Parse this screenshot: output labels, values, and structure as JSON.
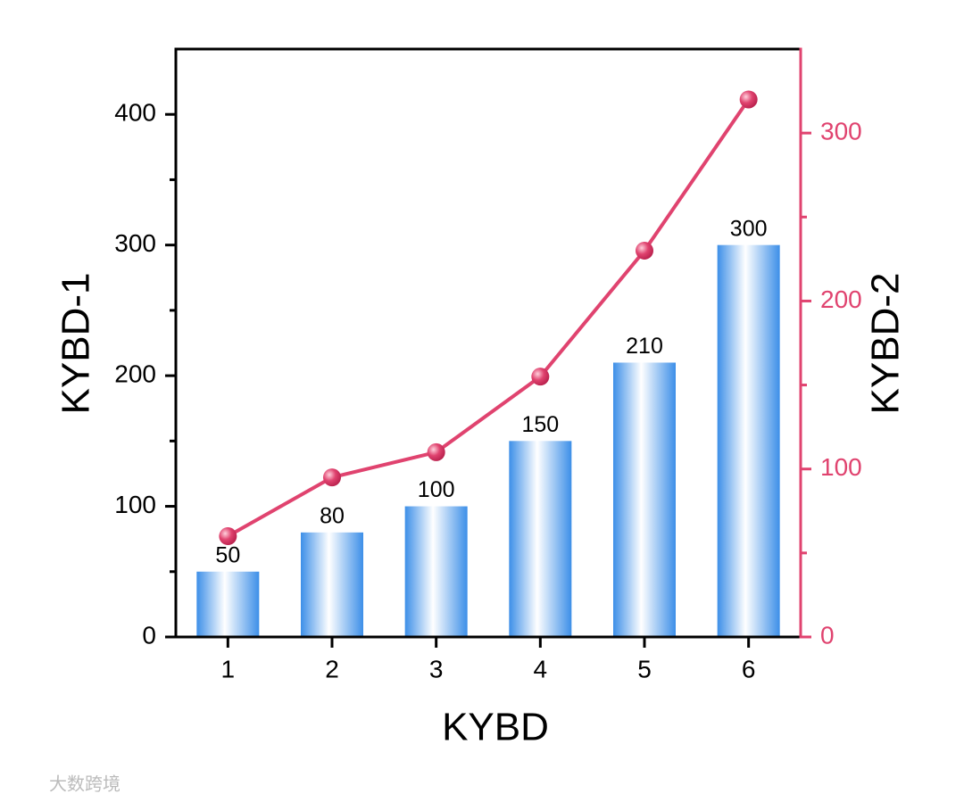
{
  "chart_data": {
    "type": "bar_line",
    "x_label": "KYBD",
    "y_label": "KYBD-1",
    "y2_label": "KYBD-2",
    "categories": [
      "1",
      "2",
      "3",
      "4",
      "5",
      "6"
    ],
    "series": [
      {
        "type": "bar",
        "color": "#3d8fe8",
        "values": [
          50,
          80,
          100,
          150,
          210,
          300
        ]
      },
      {
        "type": "line",
        "axis": "y2",
        "color": "#e0436f",
        "values": [
          60,
          95,
          110,
          155,
          230,
          320
        ]
      }
    ],
    "ylim": [
      0,
      450
    ],
    "yticks": [
      0,
      100,
      200,
      300,
      400
    ],
    "yminorticks": [
      50,
      150,
      250,
      350
    ],
    "y2lim": [
      0,
      350
    ],
    "y2ticks": [
      0,
      100,
      200,
      300
    ],
    "y2minorticks": [
      50,
      150,
      250
    ],
    "watermark": "大数跨境"
  }
}
